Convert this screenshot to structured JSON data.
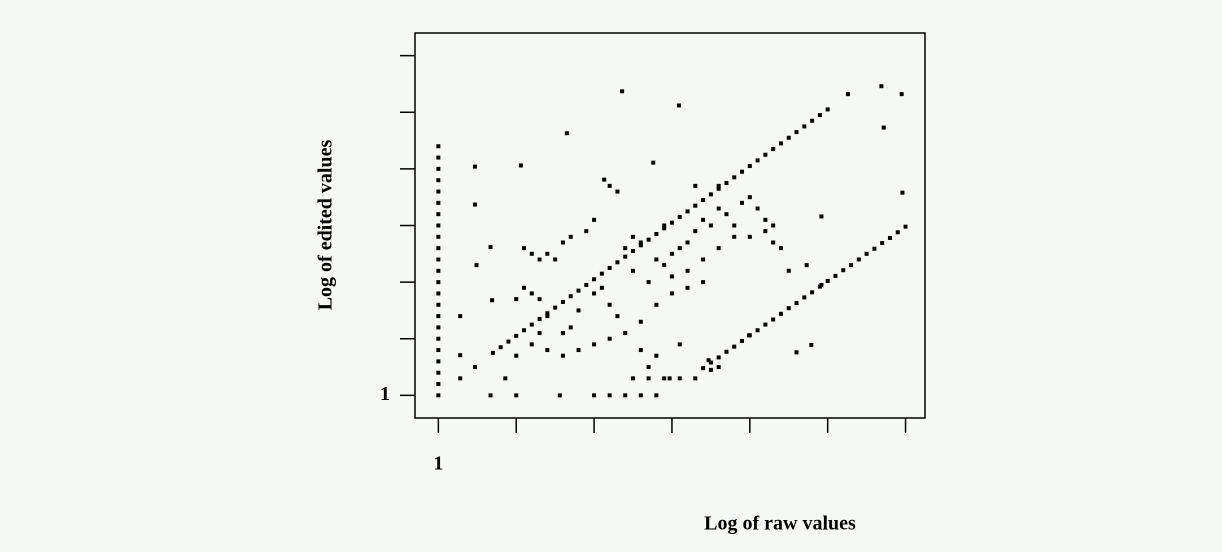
{
  "chart_data": {
    "type": "scatter",
    "x_label": "Log of raw values",
    "y_label": "Log of edited values",
    "color": "#000000",
    "xlim": [
      0.7,
      7.25
    ],
    "ylim": [
      0.6,
      7.4
    ],
    "xticks": [
      1,
      {
        "value": 2,
        "label": null
      },
      {
        "value": 3,
        "label": null
      },
      {
        "value": 4,
        "label": null
      },
      {
        "value": 5,
        "label": null
      },
      {
        "value": 6,
        "label": null
      },
      {
        "value": 7,
        "label": null
      }
    ],
    "yticks": [
      1,
      {
        "value": 2,
        "label": null
      },
      {
        "value": 3,
        "label": null
      },
      {
        "value": 4,
        "label": null
      },
      {
        "value": 5,
        "label": null
      },
      {
        "value": 6,
        "label": null
      },
      {
        "value": 7,
        "label": null
      }
    ],
    "x": [
      1,
      1,
      1,
      1,
      1,
      1,
      1,
      1,
      1,
      1,
      1,
      1,
      1,
      1,
      1,
      1,
      1,
      1,
      1,
      1,
      1,
      1,
      1,
      1.7,
      1.8,
      1.9,
      2.0,
      2.1,
      2.2,
      2.3,
      2.4,
      2.5,
      2.6,
      2.7,
      2.8,
      2.9,
      3.0,
      3.1,
      3.2,
      3.3,
      3.4,
      3.5,
      3.6,
      3.7,
      3.8,
      3.9,
      4.0,
      4.1,
      4.2,
      4.3,
      4.4,
      4.5,
      4.6,
      4.7,
      4.8,
      4.9,
      5.0,
      5.1,
      5.2,
      5.3,
      5.4,
      5.5,
      5.6,
      5.7,
      5.8,
      5.9,
      6.0,
      4.4,
      4.5,
      4.6,
      4.7,
      4.8,
      4.9,
      5.0,
      5.1,
      5.2,
      5.3,
      5.4,
      5.5,
      5.6,
      5.7,
      5.8,
      5.9,
      6.0,
      6.1,
      6.2,
      6.3,
      6.4,
      6.5,
      6.6,
      6.7,
      6.8,
      6.9,
      7.0,
      3.36,
      4.09,
      2.65,
      6.69,
      6.95,
      6.26,
      6.72,
      1.47,
      2.06,
      1.47,
      3.76,
      3.13,
      6.96,
      5.92,
      1.67,
      1.49,
      1.69,
      1.28,
      1.28,
      1.28,
      1.47,
      1.67,
      1.86,
      2.0,
      2.56,
      3.97,
      4.47,
      4.99,
      5.6,
      5.79,
      5.73,
      5.92,
      2.1,
      2.2,
      2.3,
      2.4,
      2.5,
      2.6,
      2.7,
      2.9,
      3.0,
      3.2,
      3.3,
      2.1,
      2.2,
      2.3,
      2.4,
      2.0,
      2.6,
      2.7,
      2.8,
      3.0,
      3.1,
      3.2,
      3.3,
      3.4,
      3.5,
      3.6,
      3.5,
      3.7,
      3.8,
      3.9,
      4.0,
      4.1,
      4.2,
      4.3,
      4.4,
      4.5,
      4.6,
      4.7,
      4.8,
      4.9,
      5.0,
      5.1,
      5.2,
      5.3,
      4.0,
      4.2,
      4.4,
      4.6,
      4.8,
      5.0,
      5.2,
      5.4,
      3.6,
      3.8,
      4.0,
      4.2,
      4.4,
      2.2,
      2.4,
      2.6,
      2.8,
      3.0,
      3.2,
      3.4,
      3.6,
      3.8,
      4.1,
      2.0,
      2.3,
      3.9,
      4.3,
      4.6,
      5.5,
      5.3,
      3.7,
      3.0,
      3.2,
      3.4,
      3.6,
      3.8,
      3.5,
      3.7,
      3.9,
      4.1,
      4.3,
      4.5,
      4.6
    ],
    "values": [
      1.0,
      1.2,
      1.4,
      1.6,
      1.8,
      2.0,
      2.2,
      2.4,
      2.6,
      2.8,
      3.0,
      3.2,
      3.4,
      3.6,
      3.8,
      4.0,
      4.2,
      4.4,
      4.6,
      4.8,
      5.0,
      5.2,
      5.4,
      1.75,
      1.85,
      1.95,
      2.05,
      2.15,
      2.25,
      2.35,
      2.45,
      2.55,
      2.65,
      2.75,
      2.85,
      2.95,
      3.05,
      3.15,
      3.25,
      3.35,
      3.45,
      3.55,
      3.65,
      3.75,
      3.85,
      3.95,
      4.05,
      4.15,
      4.25,
      4.35,
      4.45,
      4.55,
      4.65,
      4.75,
      4.85,
      4.95,
      5.05,
      5.15,
      5.25,
      5.35,
      5.45,
      5.55,
      5.65,
      5.75,
      5.85,
      5.95,
      6.05,
      1.48,
      1.58,
      1.67,
      1.77,
      1.86,
      1.96,
      2.06,
      2.15,
      2.25,
      2.34,
      2.44,
      2.54,
      2.63,
      2.73,
      2.82,
      2.92,
      3.02,
      3.11,
      3.21,
      3.3,
      3.4,
      3.5,
      3.59,
      3.69,
      3.78,
      3.88,
      3.98,
      6.37,
      6.12,
      5.63,
      6.46,
      6.32,
      6.32,
      5.73,
      5.04,
      5.06,
      4.37,
      5.11,
      4.81,
      4.58,
      4.16,
      3.62,
      3.3,
      2.68,
      2.4,
      1.71,
      1.3,
      1.5,
      1.0,
      1.3,
      1.0,
      1.0,
      1.3,
      1.62,
      2.06,
      1.76,
      1.89,
      3.3,
      2.95,
      3.6,
      3.5,
      3.4,
      3.5,
      3.4,
      3.7,
      3.8,
      3.9,
      4.1,
      4.7,
      4.6,
      2.9,
      2.8,
      2.7,
      2.4,
      2.7,
      2.1,
      2.2,
      2.5,
      2.8,
      2.9,
      2.6,
      2.4,
      3.6,
      3.8,
      3.7,
      3.2,
      3.0,
      3.4,
      3.3,
      3.5,
      3.6,
      3.7,
      3.9,
      4.1,
      4.0,
      4.3,
      4.2,
      4.0,
      4.4,
      4.5,
      4.3,
      4.1,
      4.0,
      3.1,
      3.2,
      3.4,
      3.6,
      3.8,
      3.8,
      3.9,
      3.6,
      2.3,
      2.6,
      2.8,
      2.9,
      3.0,
      1.9,
      1.8,
      1.7,
      1.8,
      1.9,
      2.0,
      2.1,
      1.8,
      1.7,
      1.9,
      1.7,
      2.1,
      4.0,
      4.7,
      4.7,
      3.2,
      3.7,
      1.5,
      1.0,
      1.0,
      1.0,
      1.0,
      1.0,
      1.3,
      1.3,
      1.3,
      1.3,
      1.3,
      1.45,
      1.5
    ]
  }
}
